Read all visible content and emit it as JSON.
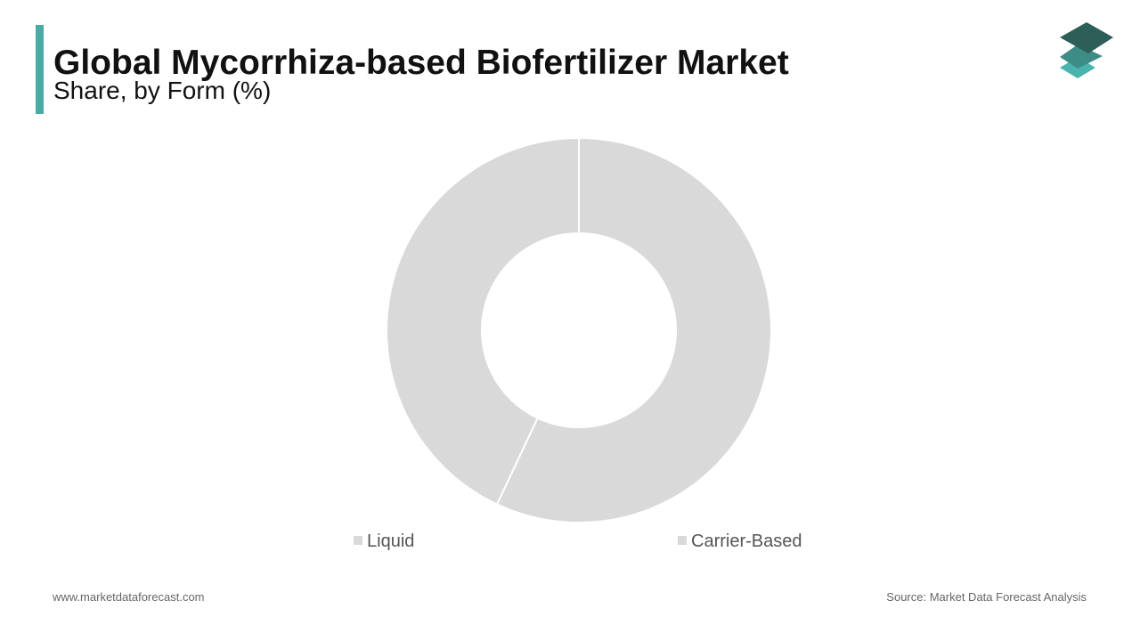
{
  "chart_data": {
    "type": "donut",
    "title": "Global Mycorrhiza-based Biofertilizer Market",
    "subtitle": "Share, by Form (%)",
    "categories": [
      "Liquid",
      "Carrier-Based"
    ],
    "values": [
      57,
      43
    ],
    "colors": [
      "#d9d9d9",
      "#d9d9d9"
    ]
  },
  "footer": {
    "website": "www.marketdataforecast.com",
    "source": "Source: Market Data Forecast Analysis"
  }
}
